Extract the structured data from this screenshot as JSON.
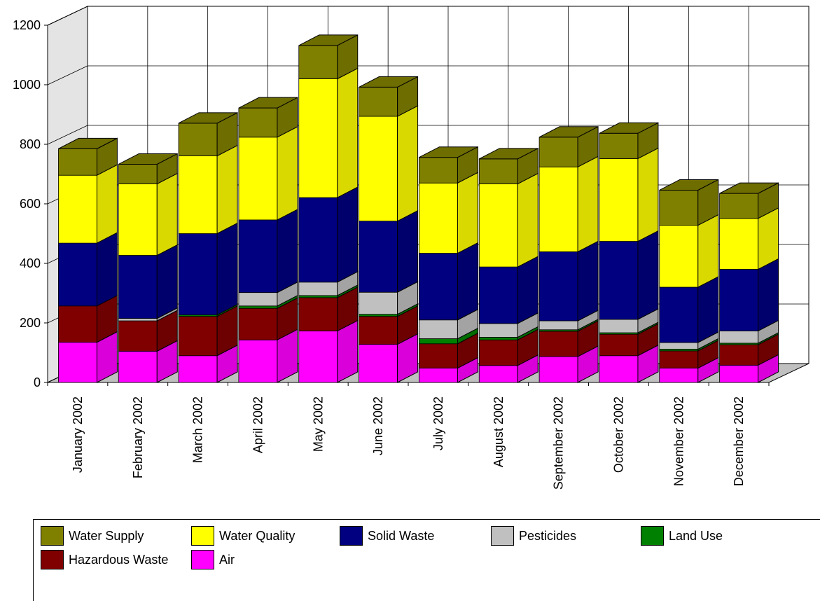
{
  "chart_data": {
    "type": "bar",
    "stacked": true,
    "three_d": true,
    "categories": [
      "January  2002",
      "February  2002",
      "March  2002",
      "April  2002",
      "May  2002",
      "June  2002",
      "July  2002",
      "August  2002",
      "September  2002",
      "October  2002",
      "November  2002",
      "December  2002"
    ],
    "ylim": [
      0,
      1200
    ],
    "yticks": [
      0,
      200,
      400,
      600,
      800,
      1000,
      1200
    ],
    "grid": true,
    "legend_position": "bottom",
    "series": [
      {
        "name": "Air",
        "color": "#ff00ff",
        "values": [
          135,
          105,
          90,
          143,
          173,
          128,
          48,
          57,
          87,
          90,
          48,
          58
        ]
      },
      {
        "name": "Hazardous Waste",
        "color": "#800000",
        "values": [
          122,
          102,
          132,
          106,
          112,
          94,
          82,
          86,
          85,
          72,
          58,
          69
        ]
      },
      {
        "name": "Land Use",
        "color": "#008000",
        "values": [
          0,
          0,
          5,
          8,
          7,
          7,
          17,
          9,
          5,
          5,
          6,
          5
        ]
      },
      {
        "name": "Pesticides",
        "color": "#c0c0c0",
        "values": [
          0,
          8,
          0,
          45,
          45,
          74,
          63,
          46,
          30,
          45,
          22,
          41
        ]
      },
      {
        "name": "Solid Waste",
        "color": "#000080",
        "values": [
          211,
          212,
          273,
          244,
          284,
          239,
          224,
          190,
          232,
          262,
          186,
          207
        ]
      },
      {
        "name": "Water Quality",
        "color": "#ffff00",
        "values": [
          228,
          240,
          261,
          278,
          399,
          352,
          236,
          279,
          285,
          278,
          208,
          171
        ]
      },
      {
        "name": "Water Supply",
        "color": "#808000",
        "values": [
          89,
          66,
          110,
          98,
          112,
          98,
          86,
          84,
          100,
          85,
          118,
          84
        ]
      }
    ]
  },
  "legend": {
    "items": [
      {
        "label": "Water Supply",
        "color": "#808000"
      },
      {
        "label": "Water Quality",
        "color": "#ffff00"
      },
      {
        "label": "Solid Waste",
        "color": "#000080"
      },
      {
        "label": "Pesticides",
        "color": "#c0c0c0"
      },
      {
        "label": "Land Use",
        "color": "#008000"
      },
      {
        "label": "Hazardous Waste",
        "color": "#800000"
      },
      {
        "label": "Air",
        "color": "#ff00ff"
      }
    ]
  }
}
